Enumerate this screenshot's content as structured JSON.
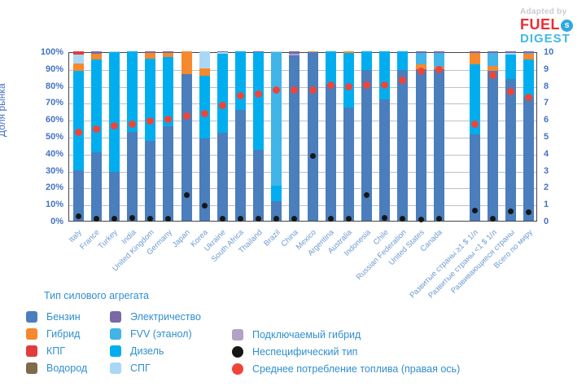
{
  "logo": {
    "adapted_by": "Adapted by",
    "word1": "FUEL",
    "word2": "DIGEST",
    "swirl_icon": "s-swirl",
    "color_word1": "#ee2b35",
    "color_word2": "#41b9e8"
  },
  "chart_data": {
    "type": "bar",
    "subtype": "stacked-100pct-with-scatter-overlay",
    "title": "",
    "ylabel": "Доля рынка",
    "ylabel_right": "",
    "grid": true,
    "y_left": {
      "min": 0,
      "max": 100,
      "step": 10,
      "tick_suffix": "%"
    },
    "y_right": {
      "min": 0,
      "max": 10,
      "step": 1
    },
    "colors": {
      "benzin": "#4a7ebd",
      "hybrid": "#f6882d",
      "kpg": "#e23b3e",
      "vodorod": "#7d6b49",
      "elektro": "#7b68a8",
      "fvv": "#41b4e8",
      "dizel": "#00aeef",
      "spg": "#a9d8f5",
      "plugin": "#b3a2c7",
      "nonspec": "#161616",
      "fuel": "#f04438",
      "grid": "#bfbfbf",
      "axis_text": "#4472c4",
      "xlabel_text": "#6b9bd2",
      "legend_text": "#2f8fd0"
    },
    "bars": [
      {
        "label": "Italy",
        "stack": [
          [
            "benzin",
            30
          ],
          [
            "dizel",
            58.5
          ],
          [
            "hybrid",
            4.5
          ],
          [
            "spg",
            5
          ],
          [
            "kpg",
            2
          ]
        ],
        "nonspec_pct": 2.5,
        "fuel_lp100km": 5.2
      },
      {
        "label": "France",
        "stack": [
          [
            "benzin",
            40.5
          ],
          [
            "dizel",
            54.5
          ],
          [
            "hybrid",
            3.5
          ],
          [
            "elektro",
            1.5
          ]
        ],
        "nonspec_pct": 1,
        "fuel_lp100km": 5.4
      },
      {
        "label": "Turkey",
        "stack": [
          [
            "benzin",
            29
          ],
          [
            "dizel",
            70.5
          ],
          [
            "spg",
            0.5
          ]
        ],
        "nonspec_pct": 1,
        "fuel_lp100km": 5.6
      },
      {
        "label": "India",
        "stack": [
          [
            "benzin",
            52.5
          ],
          [
            "dizel",
            47.5
          ]
        ],
        "nonspec_pct": 1.5,
        "fuel_lp100km": 5.7
      },
      {
        "label": "United Kingdom",
        "stack": [
          [
            "benzin",
            47
          ],
          [
            "dizel",
            48.5
          ],
          [
            "hybrid",
            3.5
          ],
          [
            "elektro",
            1
          ]
        ],
        "nonspec_pct": 1,
        "fuel_lp100km": 5.9
      },
      {
        "label": "Germany",
        "stack": [
          [
            "benzin",
            56
          ],
          [
            "dizel",
            40.5
          ],
          [
            "hybrid",
            2.5
          ],
          [
            "elektro",
            1
          ]
        ],
        "nonspec_pct": 1,
        "fuel_lp100km": 6.0
      },
      {
        "label": "Japan",
        "stack": [
          [
            "benzin",
            86.5
          ],
          [
            "hybrid",
            13.5
          ]
        ],
        "nonspec_pct": 15,
        "fuel_lp100km": 6.2
      },
      {
        "label": "Korea",
        "stack": [
          [
            "benzin",
            48.5
          ],
          [
            "dizel",
            37
          ],
          [
            "hybrid",
            4.5
          ],
          [
            "spg",
            10
          ]
        ],
        "nonspec_pct": 9,
        "fuel_lp100km": 6.3
      },
      {
        "label": "Ukraine",
        "stack": [
          [
            "benzin",
            52
          ],
          [
            "dizel",
            46.5
          ],
          [
            "spg",
            1
          ],
          [
            "elektro",
            0.5
          ]
        ],
        "nonspec_pct": 1,
        "fuel_lp100km": 6.8
      },
      {
        "label": "South Africa",
        "stack": [
          [
            "benzin",
            65.5
          ],
          [
            "dizel",
            34.5
          ]
        ],
        "nonspec_pct": 1,
        "fuel_lp100km": 7.4
      },
      {
        "label": "Thailand",
        "stack": [
          [
            "benzin",
            42
          ],
          [
            "dizel",
            57.5
          ],
          [
            "elektro",
            0.5
          ]
        ],
        "nonspec_pct": 1,
        "fuel_lp100km": 7.5
      },
      {
        "label": "Brazil",
        "stack": [
          [
            "benzin",
            11.5
          ],
          [
            "dizel",
            9
          ],
          [
            "fvv",
            79
          ],
          [
            "spg",
            0.5
          ]
        ],
        "nonspec_pct": 1,
        "fuel_lp100km": 7.7
      },
      {
        "label": "China",
        "stack": [
          [
            "benzin",
            97.5
          ],
          [
            "plugin",
            1
          ],
          [
            "elektro",
            1.5
          ]
        ],
        "nonspec_pct": 1,
        "fuel_lp100km": 7.7
      },
      {
        "label": "Mexico",
        "stack": [
          [
            "benzin",
            99.5
          ],
          [
            "hybrid",
            0.5
          ]
        ],
        "nonspec_pct": 38,
        "fuel_lp100km": 7.7
      },
      {
        "label": "Argentina",
        "stack": [
          [
            "benzin",
            80.5
          ],
          [
            "dizel",
            19.5
          ]
        ],
        "nonspec_pct": 1,
        "fuel_lp100km": 8.0
      },
      {
        "label": "Australia",
        "stack": [
          [
            "benzin",
            67
          ],
          [
            "dizel",
            32
          ],
          [
            "hybrid",
            1
          ]
        ],
        "nonspec_pct": 1,
        "fuel_lp100km": 7.9
      },
      {
        "label": "Indonesia",
        "stack": [
          [
            "benzin",
            89
          ],
          [
            "dizel",
            11
          ]
        ],
        "nonspec_pct": 15,
        "fuel_lp100km": 8.0
      },
      {
        "label": "Chile",
        "stack": [
          [
            "benzin",
            71.5
          ],
          [
            "dizel",
            28.5
          ]
        ],
        "nonspec_pct": 1.5,
        "fuel_lp100km": 8.0
      },
      {
        "label": "Russian Federation",
        "stack": [
          [
            "benzin",
            89
          ],
          [
            "dizel",
            11
          ]
        ],
        "nonspec_pct": 1,
        "fuel_lp100km": 8.3
      },
      {
        "label": "United States",
        "stack": [
          [
            "benzin",
            89.5
          ],
          [
            "hybrid",
            3
          ],
          [
            "fvv",
            6.7
          ],
          [
            "elektro",
            0.8
          ]
        ],
        "nonspec_pct": 0.5,
        "fuel_lp100km": 8.8
      },
      {
        "label": "Canada",
        "stack": [
          [
            "benzin",
            89.5
          ],
          [
            "hybrid",
            1.5
          ],
          [
            "fvv",
            8.2
          ],
          [
            "elektro",
            0.8
          ]
        ],
        "nonspec_pct": 1,
        "fuel_lp100km": 8.9
      },
      {
        "label": "Развитые страны ≥1 $ 1/л",
        "gap_before": true,
        "stack": [
          [
            "benzin",
            51
          ],
          [
            "dizel",
            41.5
          ],
          [
            "hybrid",
            6.5
          ],
          [
            "elektro",
            1
          ]
        ],
        "nonspec_pct": 6,
        "fuel_lp100km": 5.7
      },
      {
        "label": "Развитые страны <1 $ 1/л",
        "stack": [
          [
            "benzin",
            88.5
          ],
          [
            "hybrid",
            3
          ],
          [
            "fvv",
            7.5
          ],
          [
            "elektro",
            1
          ]
        ],
        "nonspec_pct": 1,
        "fuel_lp100km": 8.6
      },
      {
        "label": "Развивающиеся страны",
        "stack": [
          [
            "benzin",
            83.5
          ],
          [
            "dizel",
            14.5
          ],
          [
            "spg",
            1
          ],
          [
            "elektro",
            1
          ]
        ],
        "nonspec_pct": 5.5,
        "fuel_lp100km": 7.6
      },
      {
        "label": "Всего по миру",
        "stack": [
          [
            "benzin",
            73
          ],
          [
            "dizel",
            22
          ],
          [
            "hybrid",
            3.5
          ],
          [
            "fvv",
            0.5
          ],
          [
            "elektro",
            1
          ]
        ],
        "nonspec_pct": 5,
        "fuel_lp100km": 7.3
      }
    ]
  },
  "legend": {
    "title": "Тип силового агрегата",
    "columns": [
      [
        {
          "label": "Бензин",
          "key": "benzin",
          "shape": "square"
        },
        {
          "label": "Гибрид",
          "key": "hybrid",
          "shape": "square"
        },
        {
          "label": "КПГ",
          "key": "kpg",
          "shape": "square"
        },
        {
          "label": "Водород",
          "key": "vodorod",
          "shape": "square"
        }
      ],
      [
        {
          "label": "Электричество",
          "key": "elektro",
          "shape": "square"
        },
        {
          "label": "FVV (этанол)",
          "key": "fvv",
          "shape": "square"
        },
        {
          "label": "Дизель",
          "key": "dizel",
          "shape": "square"
        },
        {
          "label": "СПГ",
          "key": "spg",
          "shape": "square"
        }
      ],
      [
        {
          "label": "Подключаемый гибрид",
          "key": "plugin",
          "shape": "square"
        },
        {
          "label": "Неспецифический тип",
          "key": "nonspec",
          "shape": "circle"
        },
        {
          "label": "Среднее потребление топлива  (правая ось)",
          "key": "fuel",
          "shape": "circle"
        }
      ]
    ]
  }
}
